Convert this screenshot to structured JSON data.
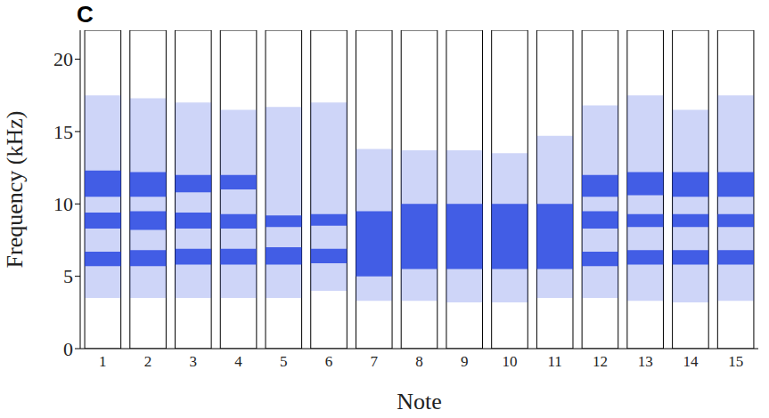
{
  "chart_data": {
    "type": "spectrogram",
    "panel_label": "C",
    "x_label": "Note",
    "y_label": "Frequency (kHz)",
    "xlim": [
      0.5,
      15.5
    ],
    "xticks": [
      1,
      2,
      3,
      4,
      5,
      6,
      7,
      8,
      9,
      10,
      11,
      12,
      13,
      14,
      15
    ],
    "ylim": [
      0,
      22
    ],
    "yticks": [
      0,
      5,
      10,
      15,
      20
    ],
    "color": "#1f3fe0",
    "notes": [
      {
        "x": 1,
        "range": [
          3.5,
          17.5
        ],
        "bands": [
          [
            5.7,
            6.7
          ],
          [
            8.3,
            9.4
          ],
          [
            10.5,
            12.3
          ]
        ]
      },
      {
        "x": 2,
        "range": [
          3.5,
          17.3
        ],
        "bands": [
          [
            5.7,
            6.8
          ],
          [
            8.2,
            9.5
          ],
          [
            10.5,
            12.2
          ]
        ]
      },
      {
        "x": 3,
        "range": [
          3.5,
          17
        ],
        "bands": [
          [
            5.8,
            6.9
          ],
          [
            8.3,
            9.4
          ],
          [
            10.8,
            12
          ]
        ]
      },
      {
        "x": 4,
        "range": [
          3.5,
          16.5
        ],
        "bands": [
          [
            5.8,
            6.9
          ],
          [
            8.3,
            9.3
          ],
          [
            11,
            12
          ]
        ]
      },
      {
        "x": 5,
        "range": [
          3.5,
          16.7
        ],
        "bands": [
          [
            5.8,
            7
          ],
          [
            8.4,
            9.2
          ]
        ]
      },
      {
        "x": 6,
        "range": [
          4,
          17
        ],
        "bands": [
          [
            5.9,
            6.9
          ],
          [
            8.5,
            9.3
          ]
        ]
      },
      {
        "x": 7,
        "range": [
          3.3,
          13.8
        ],
        "bands": [
          [
            5,
            9.5
          ]
        ]
      },
      {
        "x": 8,
        "range": [
          3.3,
          13.7
        ],
        "bands": [
          [
            5.5,
            10
          ]
        ]
      },
      {
        "x": 9,
        "range": [
          3.2,
          13.7
        ],
        "bands": [
          [
            5.5,
            10
          ]
        ]
      },
      {
        "x": 10,
        "range": [
          3.2,
          13.5
        ],
        "bands": [
          [
            5.5,
            10
          ]
        ]
      },
      {
        "x": 11,
        "range": [
          3.5,
          14.7
        ],
        "bands": [
          [
            5.5,
            10
          ]
        ]
      },
      {
        "x": 12,
        "range": [
          3.5,
          16.8
        ],
        "bands": [
          [
            5.7,
            6.7
          ],
          [
            8.3,
            9.5
          ],
          [
            10.5,
            12
          ]
        ]
      },
      {
        "x": 13,
        "range": [
          3.3,
          17.5
        ],
        "bands": [
          [
            5.8,
            6.8
          ],
          [
            8.4,
            9.3
          ],
          [
            10.6,
            12.2
          ]
        ]
      },
      {
        "x": 14,
        "range": [
          3.2,
          16.5
        ],
        "bands": [
          [
            5.8,
            6.8
          ],
          [
            8.4,
            9.3
          ],
          [
            10.5,
            12.2
          ]
        ]
      },
      {
        "x": 15,
        "range": [
          3.3,
          17.5
        ],
        "bands": [
          [
            5.8,
            6.8
          ],
          [
            8.4,
            9.3
          ],
          [
            10.5,
            12.2
          ]
        ]
      }
    ]
  }
}
